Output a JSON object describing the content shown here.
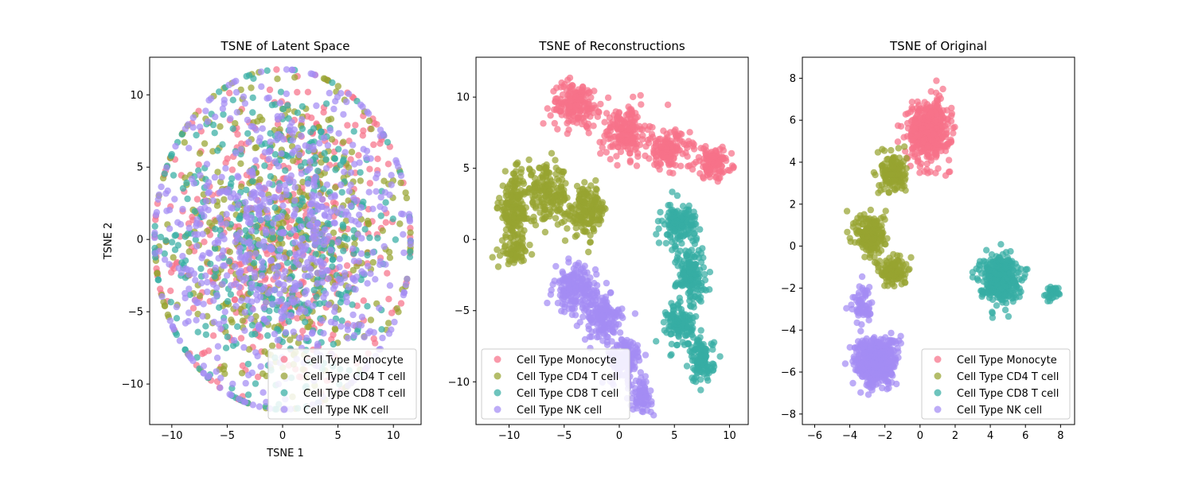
{
  "chart_data": [
    {
      "type": "scatter",
      "title": "TSNE of Latent Space",
      "xlabel": "TSNE 1",
      "ylabel": "TSNE 2",
      "xlim": [
        -12,
        12.5
      ],
      "ylim": [
        -12.8,
        12.6
      ],
      "xticks": [
        -10,
        -5,
        0,
        5,
        10
      ],
      "yticks": [
        -10,
        -5,
        0,
        5,
        10
      ],
      "legend": "lower-right",
      "series": [
        {
          "name": "Cell Type Monocyte",
          "color": "#f77189",
          "clusters": [
            {
              "center": [
                0,
                0
              ],
              "spread": [
                5.5,
                5.6
              ],
              "count": 450
            }
          ]
        },
        {
          "name": "Cell Type CD4 T cell",
          "color": "#97a431",
          "clusters": [
            {
              "center": [
                0,
                0
              ],
              "spread": [
                5.5,
                5.6
              ],
              "count": 450
            }
          ]
        },
        {
          "name": "Cell Type CD8 T cell",
          "color": "#36ada4",
          "clusters": [
            {
              "center": [
                0,
                0
              ],
              "spread": [
                5.5,
                5.6
              ],
              "count": 450
            }
          ]
        },
        {
          "name": "Cell Type NK cell",
          "color": "#a48cf4",
          "clusters": [
            {
              "center": [
                0,
                0
              ],
              "spread": [
                5.5,
                5.6
              ],
              "count": 700
            }
          ]
        }
      ]
    },
    {
      "type": "scatter",
      "title": "TSNE of Reconstructions",
      "xlabel": "",
      "ylabel": "",
      "xlim": [
        -13,
        11.7
      ],
      "ylim": [
        -13,
        12.8
      ],
      "xticks": [
        -10,
        -5,
        0,
        5,
        10
      ],
      "yticks": [
        -10,
        -5,
        0,
        5,
        10
      ],
      "legend": "lower-left",
      "series": [
        {
          "name": "Cell Type Monocyte",
          "color": "#f77189",
          "clusters": [
            {
              "center": [
                -4,
                9.5
              ],
              "spread": [
                1.8,
                1.3
              ],
              "count": 180
            },
            {
              "center": [
                0.5,
                7.5
              ],
              "spread": [
                1.8,
                1.5
              ],
              "count": 180
            },
            {
              "center": [
                4.5,
                6.3
              ],
              "spread": [
                1.6,
                1.1
              ],
              "count": 140
            },
            {
              "center": [
                8.5,
                5.4
              ],
              "spread": [
                1.4,
                0.9
              ],
              "count": 120
            }
          ]
        },
        {
          "name": "Cell Type CD4 T cell",
          "color": "#97a431",
          "clusters": [
            {
              "center": [
                -9.5,
                2.2
              ],
              "spread": [
                1.2,
                2.0
              ],
              "count": 180
            },
            {
              "center": [
                -6.5,
                3.2
              ],
              "spread": [
                1.6,
                1.6
              ],
              "count": 160
            },
            {
              "center": [
                -3,
                2.0
              ],
              "spread": [
                1.6,
                1.4
              ],
              "count": 170
            },
            {
              "center": [
                -9.5,
                -0.8
              ],
              "spread": [
                1.0,
                0.8
              ],
              "count": 60
            }
          ]
        },
        {
          "name": "Cell Type CD8 T cell",
          "color": "#36ada4",
          "clusters": [
            {
              "center": [
                5.5,
                1.0
              ],
              "spread": [
                1.3,
                1.3
              ],
              "count": 150
            },
            {
              "center": [
                6.5,
                -2.5
              ],
              "spread": [
                1.1,
                1.5
              ],
              "count": 150
            },
            {
              "center": [
                5.5,
                -6.0
              ],
              "spread": [
                1.0,
                1.3
              ],
              "count": 120
            },
            {
              "center": [
                7.5,
                -8.5
              ],
              "spread": [
                0.9,
                1.3
              ],
              "count": 110
            }
          ]
        },
        {
          "name": "Cell Type NK cell",
          "color": "#a48cf4",
          "clusters": [
            {
              "center": [
                -4,
                -3.5
              ],
              "spread": [
                1.6,
                1.3
              ],
              "count": 170
            },
            {
              "center": [
                -1.5,
                -5.5
              ],
              "spread": [
                1.5,
                1.4
              ],
              "count": 150
            },
            {
              "center": [
                0.5,
                -8.5
              ],
              "spread": [
                1.3,
                1.3
              ],
              "count": 130
            },
            {
              "center": [
                2,
                -11
              ],
              "spread": [
                0.8,
                0.9
              ],
              "count": 70
            }
          ]
        }
      ]
    },
    {
      "type": "scatter",
      "title": "TSNE of Original",
      "xlabel": "",
      "ylabel": "",
      "xlim": [
        -6.7,
        8.8
      ],
      "ylim": [
        -8.5,
        9.0
      ],
      "xticks": [
        -6,
        -4,
        -2,
        0,
        2,
        4,
        6,
        8
      ],
      "yticks": [
        -8,
        -6,
        -4,
        -2,
        0,
        2,
        4,
        6,
        8
      ],
      "legend": "lower-right",
      "series": [
        {
          "name": "Cell Type Monocyte",
          "color": "#f77189",
          "clusters": [
            {
              "center": [
                0.5,
                5.5
              ],
              "spread": [
                1.0,
                1.2
              ],
              "count": 420
            }
          ]
        },
        {
          "name": "Cell Type CD4 T cell",
          "color": "#97a431",
          "clusters": [
            {
              "center": [
                -1.5,
                3.5
              ],
              "spread": [
                0.6,
                0.8
              ],
              "count": 150
            },
            {
              "center": [
                -2.8,
                0.5
              ],
              "spread": [
                0.7,
                0.9
              ],
              "count": 180
            },
            {
              "center": [
                -1.5,
                -1.2
              ],
              "spread": [
                0.6,
                0.6
              ],
              "count": 110
            }
          ]
        },
        {
          "name": "Cell Type CD8 T cell",
          "color": "#36ada4",
          "clusters": [
            {
              "center": [
                4.5,
                -1.5
              ],
              "spread": [
                0.9,
                0.9
              ],
              "count": 380
            },
            {
              "center": [
                7.5,
                -2.2
              ],
              "spread": [
                0.35,
                0.25
              ],
              "count": 30
            }
          ]
        },
        {
          "name": "Cell Type NK cell",
          "color": "#a48cf4",
          "clusters": [
            {
              "center": [
                -2.5,
                -5.5
              ],
              "spread": [
                1.0,
                0.95
              ],
              "count": 500
            },
            {
              "center": [
                -3.3,
                -2.8
              ],
              "spread": [
                0.5,
                0.8
              ],
              "count": 60
            }
          ]
        }
      ]
    }
  ]
}
